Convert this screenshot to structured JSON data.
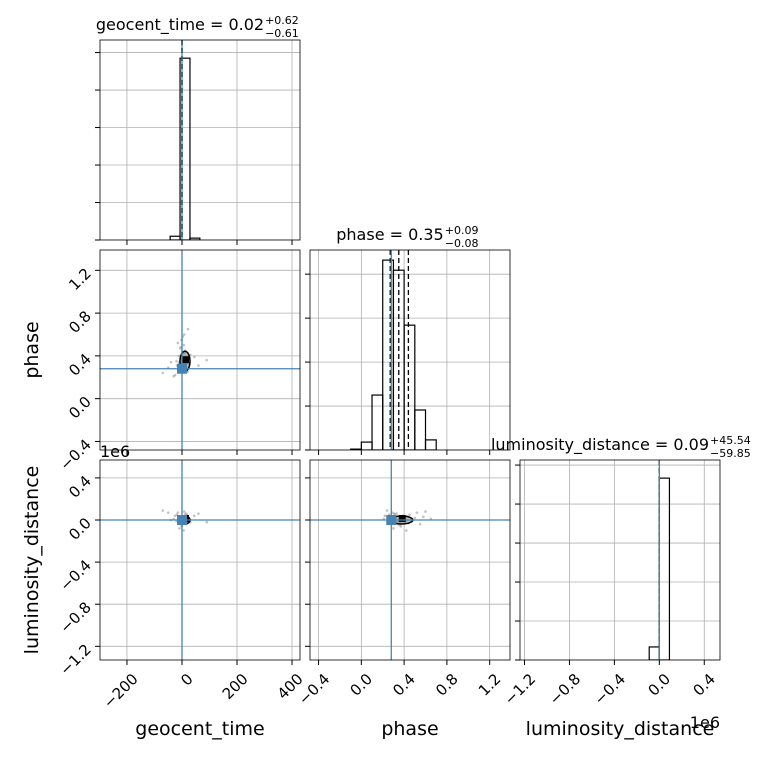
{
  "chart_data": {
    "type": "corner",
    "truth_color": "#4682b4",
    "point_color": "#999999",
    "grid": true,
    "parameters": [
      {
        "name": "geocent_time",
        "lim": [
          -298,
          429
        ],
        "ticks": [
          {
            "value": -200,
            "label": "−200"
          },
          0,
          200,
          400
        ],
        "truth": 0,
        "quantiles": [
          -0.59,
          0.02,
          0.64
        ],
        "title": {
          "text": "geocent_time = 0.02",
          "upper": "+0.62",
          "lower": "−0.61"
        },
        "hist": {
          "bins": [
            -43,
            -7,
            29,
            65
          ],
          "counts": [
            20,
            970,
            10
          ],
          "ylim": [
            0,
            1067
          ],
          "yticks": [
            0,
            200,
            400,
            600,
            800,
            1000
          ]
        }
      },
      {
        "name": "phase",
        "lim": [
          -0.48,
          1.39
        ],
        "ticks": [
          {
            "value": -0.4,
            "label": "−0.4"
          },
          {
            "value": 0,
            "label": "0.0"
          },
          0.4,
          0.8,
          1.2
        ],
        "truth": 0.28,
        "quantiles": [
          0.27,
          0.35,
          0.44
        ],
        "title": {
          "text": "phase = 0.35",
          "upper": "+0.09",
          "lower": "−0.08"
        },
        "hist": {
          "bins": [
            -0.1,
            0.0,
            0.1,
            0.2,
            0.3,
            0.4,
            0.5,
            0.6,
            0.7
          ],
          "counts": [
            2,
            18,
            125,
            432,
            409,
            284,
            91,
            23
          ],
          "ylim": [
            0,
            455
          ],
          "yticks": [
            0,
            100,
            200,
            300,
            400
          ]
        }
      },
      {
        "name": "luminosity_distance",
        "lim": [
          -1.33,
          0.57
        ],
        "xlim": [
          -1.24,
          0.54
        ],
        "ticks": [
          {
            "value": -1.2,
            "label": "−1.2"
          },
          {
            "value": -0.8,
            "label": "−0.8"
          },
          {
            "value": -0.4,
            "label": "−0.4"
          },
          {
            "value": 0,
            "label": "0.0"
          },
          0.4
        ],
        "truth": 0,
        "quantiles": [
          -5.98e-05,
          9e-08,
          4.56e-05
        ],
        "title": {
          "text": "luminosity_distance = 0.09",
          "upper": "+45.54",
          "lower": "−59.85"
        },
        "offset": "1e6",
        "hist": {
          "bins": [
            -0.09,
            0,
            0.09
          ],
          "counts": [
            67,
            933
          ],
          "ylim": [
            0,
            1026
          ],
          "yticks": [
            0,
            200,
            400,
            600,
            800,
            1000
          ]
        }
      }
    ],
    "samples": {
      "geocent_time": [
        5,
        -8,
        12,
        -3,
        20,
        -15,
        2,
        30,
        -25,
        0,
        8,
        -40,
        15,
        -6,
        60,
        -2,
        4,
        -12,
        25,
        -70,
        10,
        -1,
        3,
        18,
        -20,
        7,
        -9,
        45,
        -30,
        1,
        14,
        -5,
        90,
        -4,
        6,
        -18,
        22,
        -10,
        11,
        -50
      ],
      "phase": [
        0.32,
        0.28,
        0.45,
        0.38,
        0.25,
        0.52,
        0.3,
        0.41,
        0.22,
        0.36,
        0.6,
        0.34,
        0.29,
        0.47,
        0.31,
        0.55,
        0.27,
        0.4,
        0.33,
        0.24,
        0.43,
        0.37,
        0.58,
        0.26,
        0.35,
        0.5,
        0.3,
        0.39,
        0.21,
        0.44,
        0.33,
        0.48,
        0.36,
        0.28,
        0.42,
        0.31,
        0.65,
        0.34,
        0.38,
        0.29
      ],
      "luminosity_distance": [
        0.02,
        -0.01,
        0.05,
        0.0,
        -0.03,
        0.07,
        0.01,
        -0.02,
        0.04,
        -0.05,
        0.08,
        0.0,
        0.03,
        -0.01,
        0.06,
        -0.04,
        0.02,
        0.01,
        -0.02,
        0.09,
        0.0,
        -0.06,
        0.03,
        0.05,
        -0.01,
        0.02,
        -0.08,
        0.04,
        0.01,
        -0.03,
        0.06,
        0.0,
        -0.02,
        0.03,
        -0.1,
        0.05,
        0.01,
        -0.04,
        0.02,
        0.07
      ]
    }
  }
}
